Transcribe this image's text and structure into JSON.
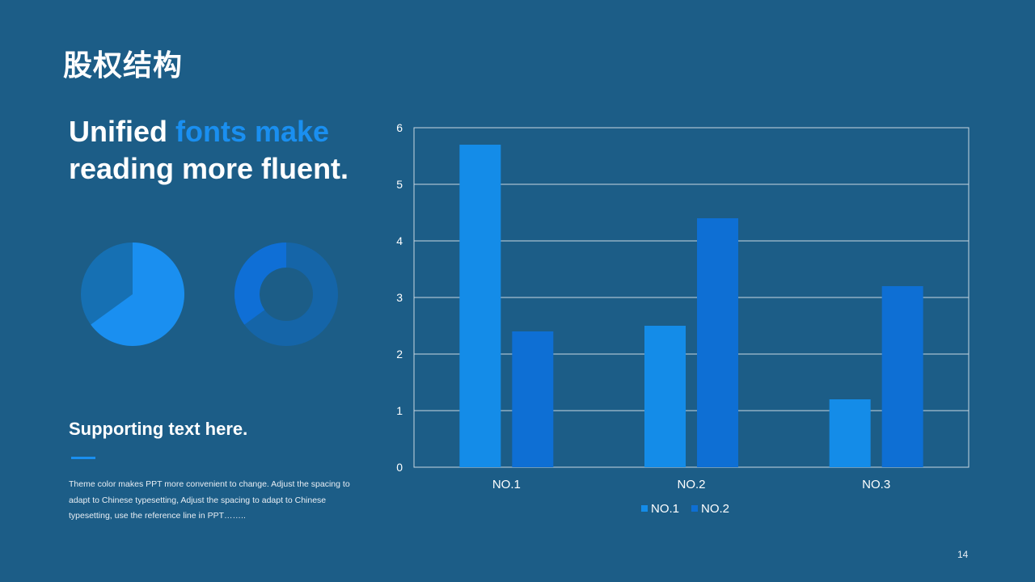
{
  "slide": {
    "title": "股权结构",
    "headline_part1": "Unified ",
    "headline_accent": "fonts make",
    "headline_part2": "reading more fluent.",
    "supporting_title": "Supporting text here.",
    "body_text": "Theme color makes PPT more convenient  to change.  Adjust the spacing to adapt to Chinese typesetting,  Adjust the spacing to adapt to Chinese typesetting,  use the reference line in PPT……..",
    "page_number": "14",
    "accent_color": "#1a8ff0",
    "background_color": "#1c5d87"
  },
  "pie_chart": {
    "share": 0.65,
    "primary_color": "#1a8ff0",
    "secondary_color": "#1670b3"
  },
  "donut_chart": {
    "share": 0.35,
    "primary_color": "#0f6fd6",
    "secondary_color": "#1565a8"
  },
  "chart_data": {
    "type": "bar",
    "categories": [
      "NO.1",
      "NO.2",
      "NO.3"
    ],
    "series": [
      {
        "name": "NO.1",
        "values": [
          5.7,
          2.5,
          1.2
        ],
        "color": "#148ce8"
      },
      {
        "name": "NO.2",
        "values": [
          2.4,
          4.4,
          3.2
        ],
        "color": "#0e6fd4"
      }
    ],
    "ylim": [
      0,
      6
    ],
    "yticks": [
      "0",
      "1",
      "2",
      "3",
      "4",
      "5",
      "6"
    ],
    "grid": true,
    "legend": "bottom"
  }
}
